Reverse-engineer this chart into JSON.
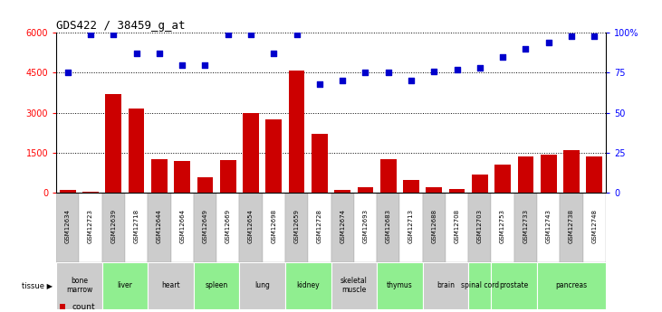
{
  "title": "GDS422 / 38459_g_at",
  "samples": [
    "GSM12634",
    "GSM12723",
    "GSM12639",
    "GSM12718",
    "GSM12644",
    "GSM12664",
    "GSM12649",
    "GSM12669",
    "GSM12654",
    "GSM12698",
    "GSM12659",
    "GSM12728",
    "GSM12674",
    "GSM12693",
    "GSM12683",
    "GSM12713",
    "GSM12688",
    "GSM12708",
    "GSM12703",
    "GSM12753",
    "GSM12733",
    "GSM12743",
    "GSM12738",
    "GSM12748"
  ],
  "counts": [
    120,
    30,
    3700,
    3150,
    1250,
    1180,
    600,
    1220,
    2980,
    2750,
    4600,
    2200,
    120,
    200,
    1250,
    500,
    200,
    130,
    700,
    1050,
    1350,
    1450,
    1600,
    1350
  ],
  "percentiles": [
    75,
    99,
    99,
    87,
    87,
    80,
    80,
    99,
    99,
    87,
    99,
    68,
    70,
    75,
    75,
    70,
    76,
    77,
    78,
    85,
    90,
    94,
    98,
    98
  ],
  "sample_bg": [
    "#cccccc",
    "#ffffff",
    "#cccccc",
    "#cccccc",
    "#cccccc",
    "#cccccc",
    "#cccccc",
    "#cccccc",
    "#cccccc",
    "#cccccc",
    "#cccccc",
    "#cccccc",
    "#cccccc",
    "#cccccc",
    "#cccccc",
    "#cccccc",
    "#cccccc",
    "#cccccc",
    "#cccccc",
    "#cccccc",
    "#cccccc",
    "#cccccc",
    "#cccccc",
    "#cccccc"
  ],
  "tissues": [
    {
      "label": "bone\nmarrow",
      "start": 0,
      "end": 2,
      "color": "#cccccc"
    },
    {
      "label": "liver",
      "start": 2,
      "end": 4,
      "color": "#90ee90"
    },
    {
      "label": "heart",
      "start": 4,
      "end": 6,
      "color": "#cccccc"
    },
    {
      "label": "spleen",
      "start": 6,
      "end": 8,
      "color": "#90ee90"
    },
    {
      "label": "lung",
      "start": 8,
      "end": 10,
      "color": "#cccccc"
    },
    {
      "label": "kidney",
      "start": 10,
      "end": 12,
      "color": "#90ee90"
    },
    {
      "label": "skeletal\nmuscle",
      "start": 12,
      "end": 14,
      "color": "#cccccc"
    },
    {
      "label": "thymus",
      "start": 14,
      "end": 16,
      "color": "#90ee90"
    },
    {
      "label": "brain",
      "start": 16,
      "end": 18,
      "color": "#cccccc"
    },
    {
      "label": "spinal cord",
      "start": 18,
      "end": 19,
      "color": "#90ee90"
    },
    {
      "label": "prostate",
      "start": 19,
      "end": 21,
      "color": "#90ee90"
    },
    {
      "label": "pancreas",
      "start": 21,
      "end": 24,
      "color": "#90ee90"
    }
  ],
  "ylim_left": [
    0,
    6000
  ],
  "ylim_right": [
    0,
    100
  ],
  "yticks_left": [
    0,
    1500,
    3000,
    4500,
    6000
  ],
  "yticks_right": [
    0,
    25,
    50,
    75,
    100
  ],
  "bar_color": "#cc0000",
  "dot_color": "#0000cc",
  "bg_color": "#ffffff"
}
